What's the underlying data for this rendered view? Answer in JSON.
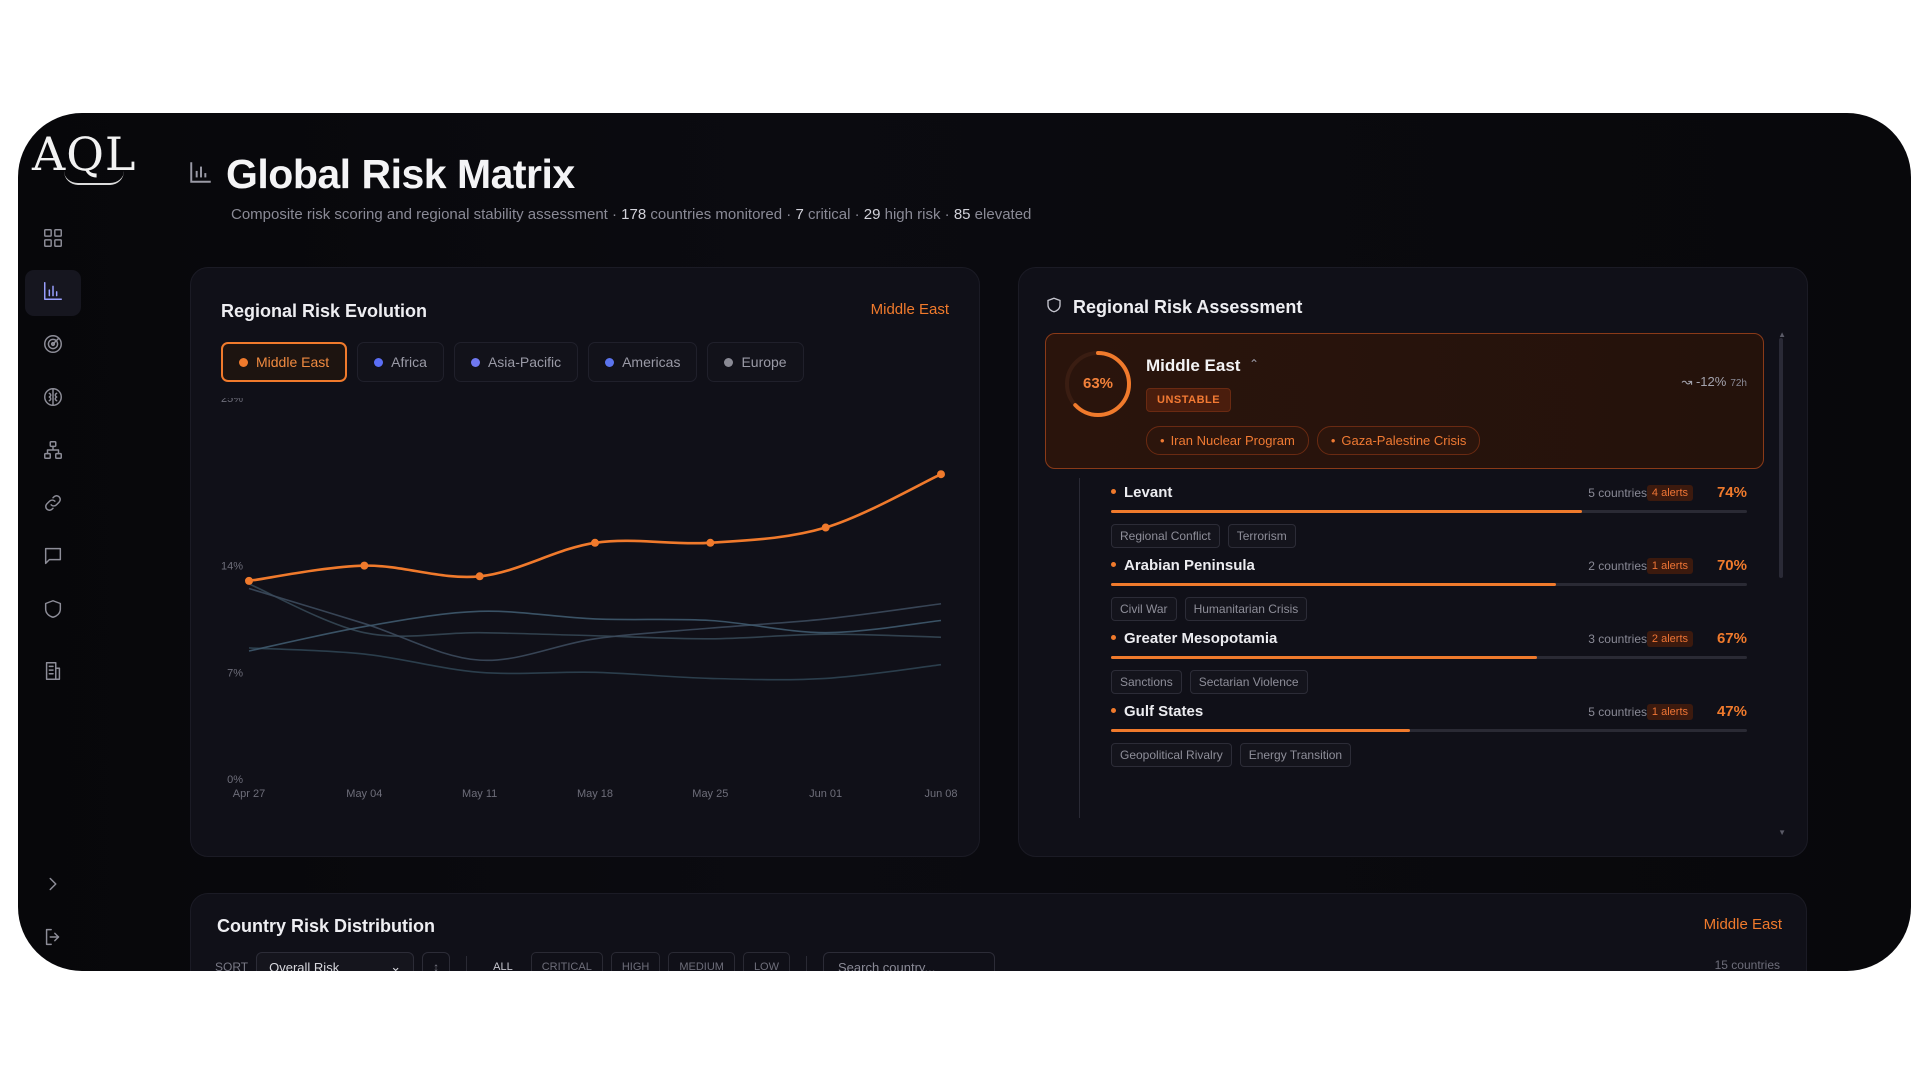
{
  "logo": "AQL",
  "header": {
    "title": "Global Risk Matrix",
    "subtitle_parts": [
      {
        "text": "Composite risk scoring and regional stability assessment · ",
        "strong": false
      },
      {
        "text": "178",
        "strong": true
      },
      {
        "text": " countries monitored · ",
        "strong": false
      },
      {
        "text": "7",
        "strong": true
      },
      {
        "text": " critical · ",
        "strong": false
      },
      {
        "text": "29",
        "strong": true
      },
      {
        "text": " high risk · ",
        "strong": false
      },
      {
        "text": "85",
        "strong": true
      },
      {
        "text": " elevated",
        "strong": false
      }
    ]
  },
  "sidebar": {
    "items": [
      {
        "icon": "dashboard-icon",
        "active": false
      },
      {
        "icon": "bar-chart-icon",
        "active": true
      },
      {
        "icon": "radar-icon",
        "active": false
      },
      {
        "icon": "brain-icon",
        "active": false
      },
      {
        "icon": "network-icon",
        "active": false
      },
      {
        "icon": "link-icon",
        "active": false
      },
      {
        "icon": "chat-icon",
        "active": false
      },
      {
        "icon": "shield-icon",
        "active": false
      },
      {
        "icon": "building-icon",
        "active": false
      }
    ],
    "bottom": [
      {
        "icon": "chevron-right-icon"
      },
      {
        "icon": "logout-icon"
      }
    ]
  },
  "evolution": {
    "title": "Regional Risk Evolution",
    "selected_region": "Middle East",
    "regions": [
      {
        "label": "Middle East",
        "color": "#f07a2c",
        "active": true
      },
      {
        "label": "Africa",
        "color": "#5b6ef5",
        "active": false
      },
      {
        "label": "Asia-Pacific",
        "color": "#6f78f0",
        "active": false
      },
      {
        "label": "Americas",
        "color": "#5b74ee",
        "active": false
      },
      {
        "label": "Europe",
        "color": "#8a8a94",
        "active": false
      }
    ]
  },
  "chart_data": {
    "type": "line",
    "x": [
      "Apr 27",
      "May 04",
      "May 11",
      "May 18",
      "May 25",
      "Jun 01",
      "Jun 08"
    ],
    "y_ticks": [
      "25%",
      "14%",
      "7%",
      "0%"
    ],
    "series": [
      {
        "name": "Middle East",
        "color": "#f07a2c",
        "values": [
          13,
          14,
          13.3,
          15.5,
          15.5,
          16.5,
          20
        ],
        "markers": true
      },
      {
        "color": "#3f5a6e",
        "values": [
          8.4,
          10,
          11,
          10.5,
          10.4,
          9.6,
          10.4
        ]
      },
      {
        "color": "#3c4a5c",
        "values": [
          12.5,
          10.2,
          7.8,
          9.2,
          9.9,
          10.5,
          11.5
        ]
      },
      {
        "color": "#354754",
        "values": [
          12.8,
          9.6,
          9.6,
          9.4,
          9.2,
          9.5,
          9.3
        ]
      },
      {
        "color": "#2f4452",
        "values": [
          8.6,
          8.2,
          7,
          7,
          6.6,
          6.6,
          7.5
        ]
      }
    ],
    "ylim": [
      0,
      25
    ]
  },
  "assessment": {
    "title": "Regional Risk Assessment",
    "region": {
      "score_label": "63%",
      "score": 0.63,
      "name": "Middle East",
      "status": "UNSTABLE",
      "trend": "-12%",
      "trend_period": "72h",
      "tags": [
        "Iran Nuclear Program",
        "Gaza-Palestine Crisis"
      ]
    },
    "subregions": [
      {
        "name": "Levant",
        "countries": "5 countries",
        "alerts": "4 alerts",
        "pct_label": "74%",
        "fill": 0.74,
        "tags": [
          "Regional Conflict",
          "Terrorism"
        ]
      },
      {
        "name": "Arabian Peninsula",
        "countries": "2 countries",
        "alerts": "1 alerts",
        "pct_label": "70%",
        "fill": 0.7,
        "tags": [
          "Civil War",
          "Humanitarian Crisis"
        ]
      },
      {
        "name": "Greater Mesopotamia",
        "countries": "3 countries",
        "alerts": "2 alerts",
        "pct_label": "67%",
        "fill": 0.67,
        "tags": [
          "Sanctions",
          "Sectarian Violence"
        ]
      },
      {
        "name": "Gulf States",
        "countries": "5 countries",
        "alerts": "1 alerts",
        "pct_label": "47%",
        "fill": 0.47,
        "tags": [
          "Geopolitical Rivalry",
          "Energy Transition"
        ]
      }
    ]
  },
  "distribution": {
    "title": "Country Risk Distribution",
    "selected_region": "Middle East",
    "sort_label": "SORT",
    "sort_value": "Overall Risk",
    "filters": [
      "ALL",
      "CRITICAL",
      "HIGH",
      "MEDIUM",
      "LOW"
    ],
    "search_placeholder": "Search country...",
    "count": "15 countries"
  }
}
